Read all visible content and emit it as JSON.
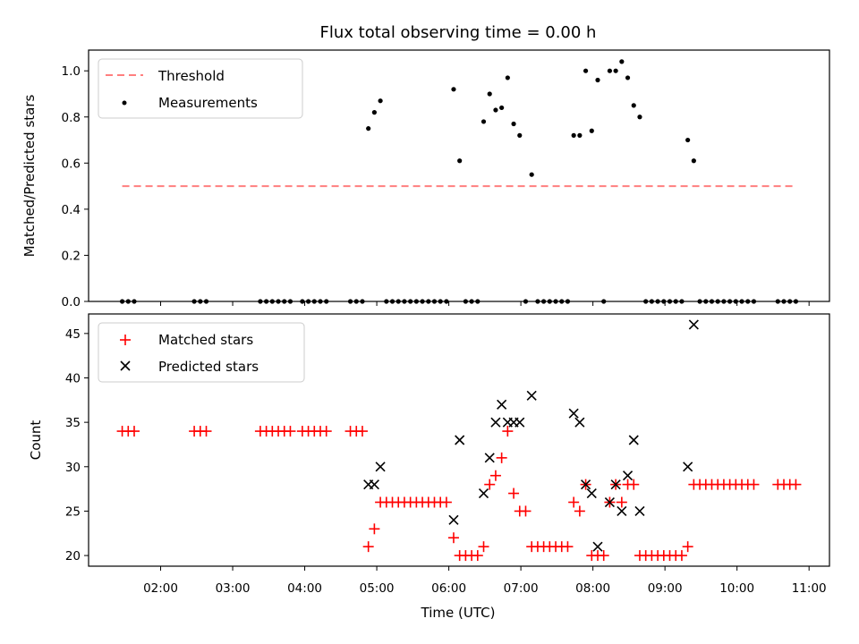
{
  "chart_data": [
    {
      "type": "scatter",
      "title": "Flux total observing time = 0.00 h",
      "xlabel": "",
      "ylabel": "Matched/Predicted stars",
      "ylim": [
        0,
        1.09
      ],
      "yticks": [
        0.0,
        0.2,
        0.4,
        0.6,
        0.8,
        1.0
      ],
      "ytick_labels": [
        "0.0",
        "0.2",
        "0.4",
        "0.6",
        "0.8",
        "1.0"
      ],
      "legend_position": "upper-left",
      "threshold": {
        "name": "Threshold",
        "value": 0.5,
        "x_start": "01:28",
        "x_end": "10:49",
        "color": "#ff7f7f"
      },
      "series": [
        {
          "name": "Measurements",
          "color": "#000000",
          "points": [
            [
              "01:28",
              0
            ],
            [
              "01:33",
              0
            ],
            [
              "01:38",
              0
            ],
            [
              "02:28",
              0
            ],
            [
              "02:33",
              0
            ],
            [
              "02:38",
              0
            ],
            [
              "03:23",
              0
            ],
            [
              "03:28",
              0
            ],
            [
              "03:33",
              0
            ],
            [
              "03:38",
              0
            ],
            [
              "03:43",
              0
            ],
            [
              "03:48",
              0
            ],
            [
              "03:58",
              0
            ],
            [
              "04:03",
              0
            ],
            [
              "04:08",
              0
            ],
            [
              "04:13",
              0
            ],
            [
              "04:18",
              0
            ],
            [
              "04:38",
              0
            ],
            [
              "04:43",
              0
            ],
            [
              "04:48",
              0
            ],
            [
              "04:53",
              0.75
            ],
            [
              "04:58",
              0.82
            ],
            [
              "05:03",
              0.87
            ],
            [
              "05:08",
              0
            ],
            [
              "05:13",
              0
            ],
            [
              "05:18",
              0
            ],
            [
              "05:23",
              0
            ],
            [
              "05:28",
              0
            ],
            [
              "05:33",
              0
            ],
            [
              "05:38",
              0
            ],
            [
              "05:43",
              0
            ],
            [
              "05:48",
              0
            ],
            [
              "05:53",
              0
            ],
            [
              "05:58",
              0
            ],
            [
              "06:04",
              0.92
            ],
            [
              "06:09",
              0.61
            ],
            [
              "06:14",
              0
            ],
            [
              "06:19",
              0
            ],
            [
              "06:24",
              0
            ],
            [
              "06:29",
              0.78
            ],
            [
              "06:34",
              0.9
            ],
            [
              "06:39",
              0.83
            ],
            [
              "06:44",
              0.84
            ],
            [
              "06:49",
              0.97
            ],
            [
              "06:54",
              0.77
            ],
            [
              "06:59",
              0.72
            ],
            [
              "07:04",
              0
            ],
            [
              "07:09",
              0.55
            ],
            [
              "07:14",
              0
            ],
            [
              "07:19",
              0
            ],
            [
              "07:24",
              0
            ],
            [
              "07:29",
              0
            ],
            [
              "07:34",
              0
            ],
            [
              "07:39",
              0
            ],
            [
              "07:44",
              0.72
            ],
            [
              "07:49",
              0.72
            ],
            [
              "07:54",
              1.0
            ],
            [
              "07:59",
              0.74
            ],
            [
              "08:04",
              0.96
            ],
            [
              "08:09",
              0
            ],
            [
              "08:14",
              1.0
            ],
            [
              "08:19",
              1.0
            ],
            [
              "08:24",
              1.04
            ],
            [
              "08:29",
              0.97
            ],
            [
              "08:34",
              0.85
            ],
            [
              "08:39",
              0.8
            ],
            [
              "08:44",
              0
            ],
            [
              "08:49",
              0
            ],
            [
              "08:54",
              0
            ],
            [
              "08:59",
              0
            ],
            [
              "09:04",
              0
            ],
            [
              "09:09",
              0
            ],
            [
              "09:14",
              0
            ],
            [
              "09:19",
              0.7
            ],
            [
              "09:24",
              0.61
            ],
            [
              "09:29",
              0
            ],
            [
              "09:34",
              0
            ],
            [
              "09:39",
              0
            ],
            [
              "09:44",
              0
            ],
            [
              "09:49",
              0
            ],
            [
              "09:54",
              0
            ],
            [
              "09:59",
              0
            ],
            [
              "10:04",
              0
            ],
            [
              "10:09",
              0
            ],
            [
              "10:14",
              0
            ],
            [
              "10:34",
              0
            ],
            [
              "10:39",
              0
            ],
            [
              "10:44",
              0
            ],
            [
              "10:49",
              0
            ]
          ]
        }
      ]
    },
    {
      "type": "scatter",
      "title": "",
      "xlabel": "Time (UTC)",
      "ylabel": "Count",
      "ylim": [
        18.8,
        47.2
      ],
      "yticks": [
        20,
        25,
        30,
        35,
        40,
        45
      ],
      "ytick_labels": [
        "20",
        "25",
        "30",
        "35",
        "40",
        "45"
      ],
      "xlim": [
        "01:00",
        "11:17"
      ],
      "xticks": [
        "02:00",
        "03:00",
        "04:00",
        "05:00",
        "06:00",
        "07:00",
        "08:00",
        "09:00",
        "10:00",
        "11:00"
      ],
      "legend_position": "upper-left",
      "series": [
        {
          "name": "Matched stars",
          "color": "#ff0000",
          "marker": "plus",
          "points": [
            [
              "01:28",
              34
            ],
            [
              "01:33",
              34
            ],
            [
              "01:38",
              34
            ],
            [
              "02:28",
              34
            ],
            [
              "02:33",
              34
            ],
            [
              "02:38",
              34
            ],
            [
              "03:23",
              34
            ],
            [
              "03:28",
              34
            ],
            [
              "03:33",
              34
            ],
            [
              "03:38",
              34
            ],
            [
              "03:43",
              34
            ],
            [
              "03:48",
              34
            ],
            [
              "03:58",
              34
            ],
            [
              "04:03",
              34
            ],
            [
              "04:08",
              34
            ],
            [
              "04:13",
              34
            ],
            [
              "04:18",
              34
            ],
            [
              "04:38",
              34
            ],
            [
              "04:43",
              34
            ],
            [
              "04:48",
              34
            ],
            [
              "04:53",
              21
            ],
            [
              "04:58",
              23
            ],
            [
              "05:03",
              26
            ],
            [
              "05:08",
              26
            ],
            [
              "05:13",
              26
            ],
            [
              "05:18",
              26
            ],
            [
              "05:23",
              26
            ],
            [
              "05:28",
              26
            ],
            [
              "05:33",
              26
            ],
            [
              "05:38",
              26
            ],
            [
              "05:43",
              26
            ],
            [
              "05:48",
              26
            ],
            [
              "05:53",
              26
            ],
            [
              "05:58",
              26
            ],
            [
              "06:04",
              22
            ],
            [
              "06:09",
              20
            ],
            [
              "06:14",
              20
            ],
            [
              "06:19",
              20
            ],
            [
              "06:24",
              20
            ],
            [
              "06:29",
              21
            ],
            [
              "06:34",
              28
            ],
            [
              "06:39",
              29
            ],
            [
              "06:44",
              31
            ],
            [
              "06:49",
              34
            ],
            [
              "06:54",
              27
            ],
            [
              "06:59",
              25
            ],
            [
              "07:04",
              25
            ],
            [
              "07:09",
              21
            ],
            [
              "07:14",
              21
            ],
            [
              "07:19",
              21
            ],
            [
              "07:24",
              21
            ],
            [
              "07:29",
              21
            ],
            [
              "07:34",
              21
            ],
            [
              "07:39",
              21
            ],
            [
              "07:44",
              26
            ],
            [
              "07:49",
              25
            ],
            [
              "07:54",
              28
            ],
            [
              "07:59",
              20
            ],
            [
              "08:04",
              20
            ],
            [
              "08:09",
              20
            ],
            [
              "08:14",
              26
            ],
            [
              "08:19",
              28
            ],
            [
              "08:24",
              26
            ],
            [
              "08:29",
              28
            ],
            [
              "08:34",
              28
            ],
            [
              "08:39",
              20
            ],
            [
              "08:44",
              20
            ],
            [
              "08:49",
              20
            ],
            [
              "08:54",
              20
            ],
            [
              "08:59",
              20
            ],
            [
              "09:04",
              20
            ],
            [
              "09:09",
              20
            ],
            [
              "09:14",
              20
            ],
            [
              "09:19",
              21
            ],
            [
              "09:24",
              28
            ],
            [
              "09:29",
              28
            ],
            [
              "09:34",
              28
            ],
            [
              "09:39",
              28
            ],
            [
              "09:44",
              28
            ],
            [
              "09:49",
              28
            ],
            [
              "09:54",
              28
            ],
            [
              "09:59",
              28
            ],
            [
              "10:04",
              28
            ],
            [
              "10:09",
              28
            ],
            [
              "10:14",
              28
            ],
            [
              "10:34",
              28
            ],
            [
              "10:39",
              28
            ],
            [
              "10:44",
              28
            ],
            [
              "10:49",
              28
            ]
          ]
        },
        {
          "name": "Predicted stars",
          "color": "#000000",
          "marker": "x",
          "points": [
            [
              "04:53",
              28
            ],
            [
              "04:58",
              28
            ],
            [
              "05:03",
              30
            ],
            [
              "06:04",
              24
            ],
            [
              "06:09",
              33
            ],
            [
              "06:29",
              27
            ],
            [
              "06:34",
              31
            ],
            [
              "06:39",
              35
            ],
            [
              "06:44",
              37
            ],
            [
              "06:49",
              35
            ],
            [
              "06:54",
              35
            ],
            [
              "06:59",
              35
            ],
            [
              "07:09",
              38
            ],
            [
              "07:44",
              36
            ],
            [
              "07:49",
              35
            ],
            [
              "07:54",
              28
            ],
            [
              "07:59",
              27
            ],
            [
              "08:04",
              21
            ],
            [
              "08:14",
              26
            ],
            [
              "08:19",
              28
            ],
            [
              "08:24",
              25
            ],
            [
              "08:29",
              29
            ],
            [
              "08:34",
              33
            ],
            [
              "08:39",
              25
            ],
            [
              "09:19",
              30
            ],
            [
              "09:24",
              46
            ]
          ]
        }
      ]
    }
  ]
}
